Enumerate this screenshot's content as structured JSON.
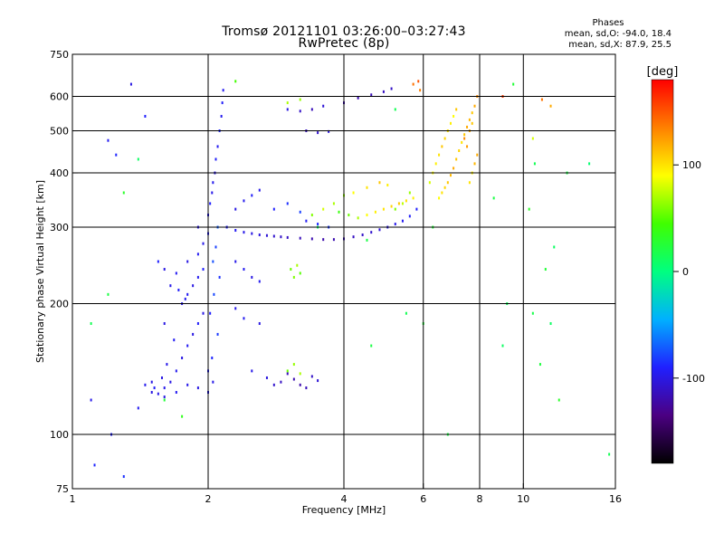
{
  "title": "Tromsø 20121101 03:26:00–03:27:43",
  "subtitle": "RwPretec (8p)",
  "phase_box": {
    "heading": "Phases",
    "line1": "mean, sd,O: -94.0, 18.4",
    "line2": "mean, sd,X: 87.9, 25.5"
  },
  "colorbar": {
    "label": "[deg]",
    "range": [
      -180,
      180
    ],
    "ticks": [
      {
        "value": 100,
        "label": "100"
      },
      {
        "value": 0,
        "label": "0"
      },
      {
        "value": -100,
        "label": "-100"
      }
    ],
    "stops": [
      "#000000",
      "#4b0082",
      "#2020ff",
      "#00b0ff",
      "#00ff80",
      "#40ff00",
      "#ffff00",
      "#ff8000",
      "#ff0000"
    ]
  },
  "chart_data": {
    "type": "scatter",
    "xlabel": "Frequency [MHz]",
    "ylabel": "Stationary phase Virtual Height [km]",
    "xscale": "log",
    "yscale": "log",
    "xlim": [
      1,
      16
    ],
    "ylim": [
      75,
      750
    ],
    "xticks": [
      {
        "value": 1,
        "label": "1"
      },
      {
        "value": 2,
        "label": "2"
      },
      {
        "value": 4,
        "label": "4"
      },
      {
        "value": 6,
        "label": "6"
      },
      {
        "value": 8,
        "label": "8"
      },
      {
        "value": 10,
        "label": "10"
      },
      {
        "value": 16,
        "label": "16"
      }
    ],
    "yticks": [
      {
        "value": 75,
        "label": "75"
      },
      {
        "value": 100,
        "label": "100"
      },
      {
        "value": 200,
        "label": "200"
      },
      {
        "value": 300,
        "label": "300"
      },
      {
        "value": 400,
        "label": "400"
      },
      {
        "value": 500,
        "label": "500"
      },
      {
        "value": 600,
        "label": "600"
      },
      {
        "value": 750,
        "label": "750"
      }
    ],
    "xgrid": [
      2,
      4,
      6,
      8,
      10
    ],
    "ygrid": [
      100,
      200,
      300,
      400,
      500,
      600
    ],
    "series": [
      {
        "points": [
          [
            1.4,
            115,
            -95
          ],
          [
            1.5,
            125,
            -100
          ],
          [
            1.6,
            128,
            -98
          ],
          [
            1.65,
            132,
            -100
          ],
          [
            1.7,
            140,
            -96
          ],
          [
            1.75,
            150,
            -100
          ],
          [
            1.8,
            160,
            -95
          ],
          [
            1.85,
            170,
            -100
          ],
          [
            1.9,
            180,
            -92
          ],
          [
            1.95,
            190,
            -100
          ],
          [
            1.75,
            200,
            -98
          ],
          [
            1.8,
            210,
            -95
          ],
          [
            1.85,
            220,
            -100
          ],
          [
            1.9,
            230,
            -96
          ],
          [
            1.95,
            240,
            -90
          ],
          [
            1.8,
            250,
            -100
          ],
          [
            1.9,
            260,
            -95
          ],
          [
            1.95,
            275,
            -98
          ],
          [
            2.0,
            290,
            -92
          ],
          [
            1.9,
            300,
            -100
          ],
          [
            2.0,
            320,
            -95
          ],
          [
            2.02,
            340,
            -90
          ],
          [
            2.04,
            360,
            -98
          ],
          [
            2.05,
            380,
            -96
          ],
          [
            2.07,
            400,
            -100
          ],
          [
            2.08,
            430,
            -92
          ],
          [
            2.1,
            460,
            -95
          ],
          [
            2.12,
            500,
            -88
          ],
          [
            2.14,
            540,
            -96
          ],
          [
            2.15,
            580,
            -92
          ],
          [
            2.16,
            620,
            -95
          ],
          [
            2.1,
            300,
            -70
          ],
          [
            2.08,
            270,
            -80
          ],
          [
            2.05,
            250,
            -75
          ],
          [
            2.12,
            230,
            -85
          ],
          [
            2.06,
            210,
            -78
          ],
          [
            2.02,
            190,
            -90
          ],
          [
            2.1,
            170,
            -82
          ],
          [
            2.04,
            150,
            -88
          ],
          [
            2.0,
            140,
            -92
          ],
          [
            1.55,
            250,
            -90
          ],
          [
            1.6,
            240,
            -100
          ],
          [
            1.7,
            235,
            -95
          ],
          [
            1.65,
            220,
            -98
          ],
          [
            1.72,
            215,
            -92
          ],
          [
            1.78,
            205,
            -96
          ],
          [
            1.6,
            180,
            -100
          ],
          [
            1.68,
            165,
            -94
          ],
          [
            1.62,
            145,
            -98
          ],
          [
            1.58,
            135,
            -100
          ],
          [
            1.45,
            130,
            -96
          ],
          [
            1.5,
            132,
            -100
          ],
          [
            1.52,
            128,
            -92
          ],
          [
            1.55,
            124,
            -98
          ],
          [
            1.6,
            122,
            -100
          ],
          [
            1.7,
            125,
            -95
          ],
          [
            1.8,
            130,
            -98
          ],
          [
            1.9,
            128,
            -100
          ],
          [
            2.0,
            125,
            -95
          ],
          [
            2.05,
            132,
            -98
          ],
          [
            2.2,
            300,
            -92
          ],
          [
            2.3,
            295,
            -95
          ],
          [
            2.4,
            292,
            -98
          ],
          [
            2.5,
            290,
            -100
          ],
          [
            2.6,
            288,
            -102
          ],
          [
            2.7,
            287,
            -105
          ],
          [
            2.8,
            286,
            -108
          ],
          [
            2.9,
            285,
            -110
          ],
          [
            3.0,
            284,
            -112
          ],
          [
            3.2,
            283,
            -115
          ],
          [
            3.4,
            282,
            -118
          ],
          [
            3.6,
            281,
            -120
          ],
          [
            3.8,
            281,
            -118
          ],
          [
            4.0,
            282,
            -115
          ],
          [
            4.2,
            285,
            -112
          ],
          [
            4.4,
            288,
            -110
          ],
          [
            4.6,
            292,
            -108
          ],
          [
            4.8,
            296,
            -105
          ],
          [
            5.0,
            300,
            -100
          ],
          [
            5.2,
            305,
            -98
          ],
          [
            5.4,
            310,
            -95
          ],
          [
            5.6,
            318,
            -92
          ],
          [
            5.8,
            330,
            -90
          ],
          [
            2.3,
            330,
            -100
          ],
          [
            2.4,
            345,
            -96
          ],
          [
            2.5,
            355,
            -92
          ],
          [
            2.6,
            365,
            -98
          ],
          [
            2.8,
            330,
            -90
          ],
          [
            3.0,
            340,
            -85
          ],
          [
            3.2,
            325,
            -80
          ],
          [
            3.3,
            310,
            -94
          ],
          [
            3.5,
            305,
            -88
          ],
          [
            3.7,
            300,
            -82
          ],
          [
            2.3,
            250,
            -98
          ],
          [
            2.4,
            240,
            -95
          ],
          [
            2.5,
            230,
            -100
          ],
          [
            2.6,
            225,
            -96
          ],
          [
            2.3,
            195,
            -98
          ],
          [
            2.4,
            185,
            -95
          ],
          [
            2.6,
            180,
            -100
          ],
          [
            2.5,
            140,
            -98
          ],
          [
            2.7,
            135,
            -102
          ],
          [
            2.8,
            130,
            -108
          ],
          [
            2.9,
            132,
            -112
          ],
          [
            3.0,
            138,
            -115
          ],
          [
            3.1,
            134,
            -118
          ],
          [
            3.2,
            130,
            -120
          ],
          [
            3.3,
            128,
            -115
          ],
          [
            3.4,
            136,
            -110
          ],
          [
            3.5,
            133,
            -105
          ],
          [
            3.0,
            560,
            -100
          ],
          [
            3.2,
            555,
            -110
          ],
          [
            3.4,
            560,
            -115
          ],
          [
            3.6,
            570,
            -105
          ],
          [
            3.3,
            500,
            -112
          ],
          [
            3.5,
            495,
            -108
          ],
          [
            3.7,
            498,
            -102
          ],
          [
            4.0,
            580,
            -120
          ],
          [
            4.3,
            595,
            -118
          ],
          [
            4.6,
            605,
            -115
          ],
          [
            4.9,
            615,
            -112
          ],
          [
            5.1,
            625,
            -110
          ],
          [
            1.35,
            640,
            -100
          ],
          [
            1.45,
            540,
            -90
          ],
          [
            1.2,
            475,
            -95
          ],
          [
            1.25,
            440,
            -88
          ],
          [
            1.1,
            120,
            -98
          ],
          [
            1.22,
            100,
            -92
          ],
          [
            1.12,
            85,
            -88
          ],
          [
            1.3,
            80,
            -85
          ]
        ]
      },
      {
        "points": [
          [
            3.9,
            325,
            40
          ],
          [
            4.1,
            320,
            55
          ],
          [
            4.3,
            315,
            70
          ],
          [
            4.5,
            320,
            90
          ],
          [
            4.7,
            325,
            95
          ],
          [
            4.9,
            330,
            100
          ],
          [
            5.1,
            335,
            105
          ],
          [
            5.3,
            340,
            110
          ],
          [
            5.5,
            345,
            100
          ],
          [
            5.7,
            350,
            95
          ],
          [
            3.4,
            320,
            60
          ],
          [
            3.6,
            330,
            80
          ],
          [
            3.8,
            340,
            70
          ],
          [
            4.0,
            355,
            65
          ],
          [
            4.2,
            360,
            90
          ],
          [
            4.5,
            370,
            100
          ],
          [
            4.8,
            380,
            110
          ],
          [
            5.0,
            375,
            95
          ],
          [
            3.05,
            240,
            55
          ],
          [
            3.1,
            230,
            60
          ],
          [
            3.15,
            245,
            70
          ],
          [
            3.2,
            235,
            50
          ],
          [
            3.0,
            140,
            55
          ],
          [
            3.1,
            145,
            65
          ],
          [
            3.2,
            138,
            70
          ],
          [
            6.5,
            350,
            90
          ],
          [
            6.6,
            360,
            100
          ],
          [
            6.7,
            370,
            105
          ],
          [
            6.8,
            380,
            110
          ],
          [
            6.9,
            395,
            115
          ],
          [
            7.0,
            410,
            120
          ],
          [
            7.1,
            430,
            110
          ],
          [
            7.2,
            450,
            105
          ],
          [
            7.3,
            470,
            100
          ],
          [
            7.4,
            490,
            110
          ],
          [
            7.5,
            510,
            120
          ],
          [
            7.6,
            530,
            115
          ],
          [
            7.7,
            550,
            110
          ],
          [
            7.8,
            570,
            120
          ],
          [
            7.9,
            600,
            130
          ],
          [
            6.2,
            380,
            80
          ],
          [
            6.3,
            400,
            90
          ],
          [
            6.4,
            420,
            95
          ],
          [
            6.5,
            440,
            100
          ],
          [
            6.6,
            460,
            110
          ],
          [
            6.7,
            480,
            105
          ],
          [
            6.8,
            500,
            100
          ],
          [
            6.9,
            520,
            95
          ],
          [
            7.0,
            540,
            90
          ],
          [
            7.1,
            560,
            110
          ],
          [
            7.6,
            380,
            100
          ],
          [
            7.7,
            400,
            95
          ],
          [
            7.8,
            420,
            115
          ],
          [
            7.9,
            440,
            120
          ],
          [
            7.5,
            460,
            125
          ],
          [
            7.4,
            480,
            130
          ],
          [
            7.6,
            500,
            120
          ],
          [
            7.7,
            520,
            110
          ],
          [
            5.7,
            640,
            140
          ],
          [
            5.85,
            650,
            150
          ],
          [
            5.9,
            620,
            135
          ],
          [
            3.0,
            580,
            70
          ],
          [
            3.2,
            590,
            65
          ],
          [
            5.2,
            330,
            60
          ],
          [
            5.4,
            340,
            75
          ],
          [
            5.6,
            360,
            65
          ],
          [
            10.5,
            480,
            80
          ],
          [
            11.0,
            590,
            140
          ],
          [
            11.5,
            570,
            120
          ],
          [
            9.0,
            600,
            160
          ]
        ]
      },
      {
        "points": [
          [
            1.3,
            360,
            30
          ],
          [
            1.2,
            210,
            20
          ],
          [
            1.1,
            180,
            15
          ],
          [
            1.4,
            430,
            10
          ],
          [
            1.6,
            120,
            25
          ],
          [
            1.75,
            110,
            35
          ],
          [
            2.3,
            650,
            45
          ],
          [
            3.5,
            300,
            10
          ],
          [
            4.5,
            280,
            20
          ],
          [
            5.5,
            190,
            15
          ],
          [
            6.3,
            300,
            25
          ],
          [
            6.8,
            100,
            20
          ],
          [
            9.0,
            160,
            10
          ],
          [
            9.5,
            640,
            25
          ],
          [
            10.3,
            330,
            30
          ],
          [
            10.6,
            420,
            15
          ],
          [
            11.2,
            240,
            25
          ],
          [
            11.7,
            270,
            10
          ],
          [
            12.5,
            400,
            20
          ],
          [
            14.0,
            420,
            5
          ],
          [
            15.5,
            90,
            15
          ],
          [
            12.0,
            120,
            30
          ],
          [
            11.5,
            180,
            10
          ],
          [
            10.9,
            145,
            22
          ],
          [
            10.5,
            190,
            18
          ],
          [
            9.2,
            200,
            12
          ],
          [
            8.6,
            350,
            20
          ],
          [
            6.0,
            180,
            25
          ],
          [
            5.2,
            560,
            15
          ],
          [
            4.6,
            160,
            20
          ]
        ]
      }
    ]
  }
}
